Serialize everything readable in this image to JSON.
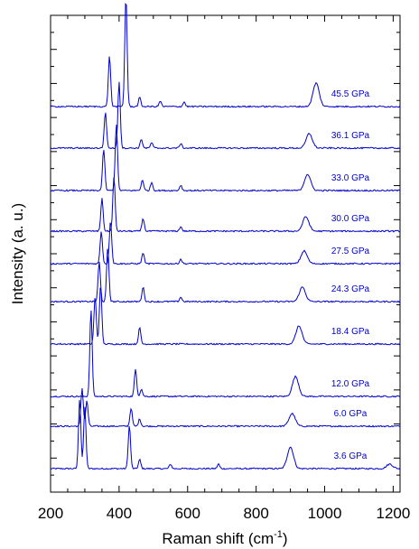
{
  "chart_data": {
    "type": "line",
    "xlabel": "Raman shift (cm",
    "xlabel_superscript": "-1",
    "xlabel_close": ")",
    "ylabel": "Intensity (a. u.)",
    "xlim": [
      200,
      1220
    ],
    "x_ticks": [
      200,
      400,
      600,
      800,
      1000,
      1200
    ],
    "x_tick_labels": [
      "200",
      "400",
      "600",
      "800",
      "1000",
      "1200"
    ],
    "line_color": "#0000cc",
    "series": [
      {
        "name": "3.6 GPa",
        "peaks": [
          [
            285,
            78
          ],
          [
            300,
            68
          ],
          [
            430,
            48
          ],
          [
            460,
            10
          ],
          [
            550,
            5
          ],
          [
            690,
            5
          ],
          [
            900,
            24
          ],
          [
            1190,
            5
          ]
        ]
      },
      {
        "name": "6.0 GPa",
        "peaks": [
          [
            292,
            42
          ],
          [
            306,
            28
          ],
          [
            435,
            20
          ],
          [
            460,
            8
          ],
          [
            905,
            14
          ]
        ]
      },
      {
        "name": "12.0 GPa",
        "peaks": [
          [
            318,
            96
          ],
          [
            448,
            30
          ],
          [
            465,
            8
          ],
          [
            915,
            22
          ]
        ]
      },
      {
        "name": "18.4 GPa",
        "peaks": [
          [
            330,
            52
          ],
          [
            346,
            66
          ],
          [
            460,
            18
          ],
          [
            925,
            20
          ]
        ]
      },
      {
        "name": "24.3 GPa",
        "peaks": [
          [
            342,
            44
          ],
          [
            367,
            60
          ],
          [
            470,
            16
          ],
          [
            580,
            5
          ],
          [
            935,
            16
          ]
        ]
      },
      {
        "name": "27.5 GPa",
        "peaks": [
          [
            348,
            36
          ],
          [
            375,
            48
          ],
          [
            470,
            12
          ],
          [
            580,
            5
          ],
          [
            940,
            14
          ]
        ]
      },
      {
        "name": "30.0 GPa",
        "peaks": [
          [
            350,
            36
          ],
          [
            385,
            60
          ],
          [
            470,
            14
          ],
          [
            580,
            5
          ],
          [
            945,
            16
          ]
        ]
      },
      {
        "name": "33.0 GPa",
        "peaks": [
          [
            355,
            46
          ],
          [
            392,
            74
          ],
          [
            468,
            12
          ],
          [
            495,
            9
          ],
          [
            580,
            6
          ],
          [
            950,
            18
          ]
        ]
      },
      {
        "name": "36.1 GPa",
        "peaks": [
          [
            360,
            40
          ],
          [
            400,
            74
          ],
          [
            465,
            10
          ],
          [
            495,
            6
          ],
          [
            580,
            5
          ],
          [
            955,
            16
          ]
        ]
      },
      {
        "name": "45.5 GPa",
        "peaks": [
          [
            372,
            56
          ],
          [
            420,
            122
          ],
          [
            460,
            10
          ],
          [
            520,
            6
          ],
          [
            590,
            5
          ],
          [
            975,
            26
          ]
        ]
      }
    ]
  }
}
